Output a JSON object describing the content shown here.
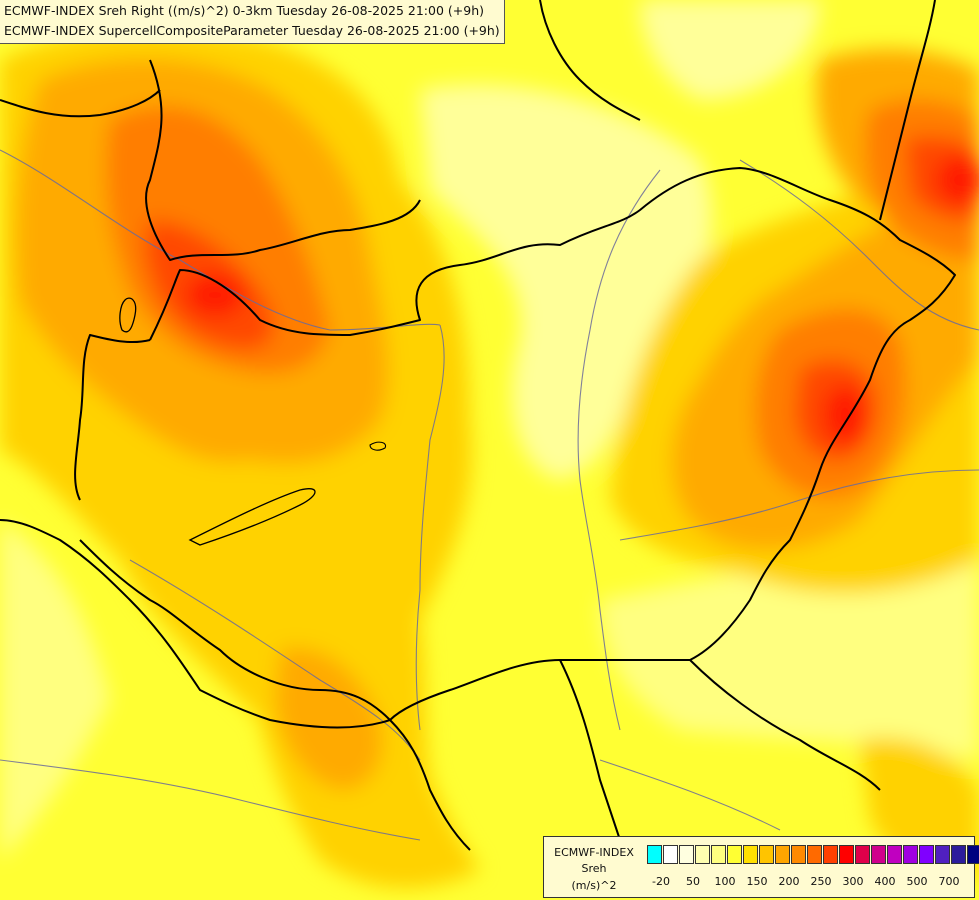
{
  "header": {
    "line1": "ECMWF-INDEX Sreh Right ((m/s)^2) 0-3km Tuesday 26-08-2025 21:00 (+9h)",
    "line2": "ECMWF-INDEX SupercellCompositeParameter Tuesday 26-08-2025 21:00 (+9h)"
  },
  "legend": {
    "title_line1": "ECMWF-INDEX",
    "title_line2": "Sreh",
    "title_line3": "(m/s)^2",
    "swatch_colors": [
      "#00ffff",
      "#ffffff",
      "#ffffe0",
      "#ffffb0",
      "#ffff80",
      "#ffff33",
      "#ffe000",
      "#ffc400",
      "#ffa500",
      "#ff8a00",
      "#ff6a00",
      "#ff4000",
      "#ff0000",
      "#e0004a",
      "#d0008c",
      "#c000c0",
      "#a000e0",
      "#8000ff",
      "#5020c0",
      "#2c1c9c",
      "#000080"
    ],
    "tick_labels": [
      "-20",
      "50",
      "100",
      "150",
      "200",
      "250",
      "300",
      "400",
      "500",
      "700"
    ]
  },
  "palette": {
    "light": "#ffff99",
    "base": "#ffff33",
    "gold": "#ffd200",
    "orange": "#ffaa00",
    "dark_orange": "#ff7e00",
    "red_orange": "#ff4800",
    "red": "#ff0000",
    "border": "#000000",
    "river": "#6b6b9a"
  }
}
